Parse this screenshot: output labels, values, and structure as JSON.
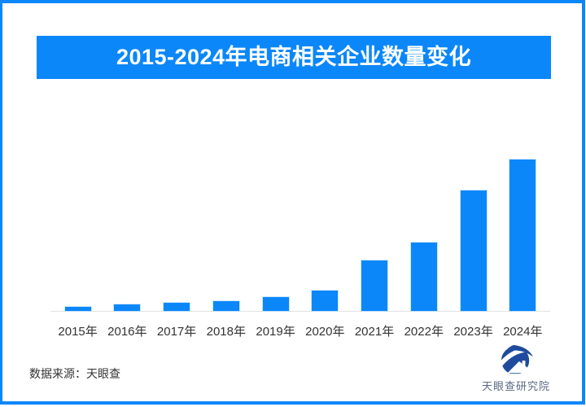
{
  "title_banner": {
    "text": "2015-2024年电商相关企业数量变化"
  },
  "footer": {
    "source_label": "数据来源：天眼查"
  },
  "logo": {
    "text": "天眼查研究院"
  },
  "colors": {
    "accent_blue": "#0b87fa",
    "frame_blue": "#0b87fa",
    "bar_blue": "#0b87fa",
    "logo_navy": "#1e4b9e",
    "logo_text_color": "#5a6a85",
    "axis_line": "#e3e3e3",
    "label_gray": "#333333"
  },
  "chart_data": {
    "type": "bar",
    "title": "2015-2024年电商相关企业数量变化",
    "categories": [
      "2015年",
      "2016年",
      "2017年",
      "2018年",
      "2019年",
      "2020年",
      "2021年",
      "2022年",
      "2023年",
      "2024年"
    ],
    "values": [
      2.7,
      4.3,
      5.4,
      6.2,
      8.9,
      13.7,
      33.3,
      45.2,
      79.6,
      100
    ],
    "value_note": "no numeric axis shown in figure; values are bar heights as percent of tallest bar (2024 = 100)",
    "xlabel": "",
    "ylabel": "",
    "ylim": [
      0,
      100
    ],
    "grid": false,
    "legend": false,
    "bar_color": "#0b87fa"
  }
}
